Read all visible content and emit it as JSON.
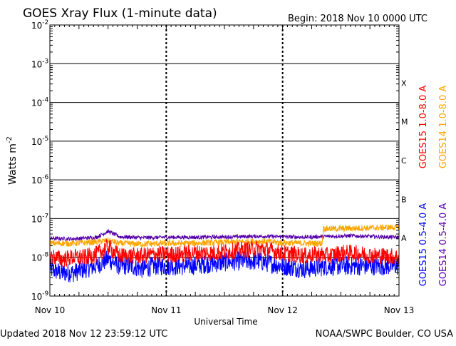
{
  "title": "GOES Xray Flux (1-minute data)",
  "begin": "Begin:  2018 Nov 10 0000 UTC",
  "footer": {
    "updated": "Updated 2018 Nov 12 23:59:12 UTC",
    "credit": "NOAA/SWPC Boulder, CO USA"
  },
  "colors": {
    "goes15_long": "#ff0000",
    "goes14_long": "#ffa500",
    "goes15_short": "#0000ff",
    "goes14_short": "#5500aa"
  },
  "chart_data": {
    "type": "line",
    "title": "GOES Xray Flux (1-minute data)",
    "xlabel": "Universal Time",
    "ylabel": "Watts m⁻²",
    "ylabel_base": "Watts m",
    "ylabel_sup": "-2",
    "yscale": "log",
    "ylim_exp": [
      -9,
      -2
    ],
    "xlim_days": [
      0,
      3
    ],
    "grid": true,
    "x_ticks": [
      {
        "day": 0,
        "label": "Nov 10"
      },
      {
        "day": 1,
        "label": "Nov 11"
      },
      {
        "day": 2,
        "label": "Nov 12"
      },
      {
        "day": 3,
        "label": "Nov 13"
      }
    ],
    "y_ticks": [
      {
        "exp": -9,
        "label": "10",
        "sup": "-9"
      },
      {
        "exp": -8,
        "label": "10",
        "sup": "-8"
      },
      {
        "exp": -7,
        "label": "10",
        "sup": "-7"
      },
      {
        "exp": -6,
        "label": "10",
        "sup": "-6"
      },
      {
        "exp": -5,
        "label": "10",
        "sup": "-5"
      },
      {
        "exp": -4,
        "label": "10",
        "sup": "-4"
      },
      {
        "exp": -3,
        "label": "10",
        "sup": "-3"
      },
      {
        "exp": -2,
        "label": "10",
        "sup": "-2"
      }
    ],
    "flare_classes": [
      {
        "label": "A",
        "exp": -7.5
      },
      {
        "label": "B",
        "exp": -6.5
      },
      {
        "label": "C",
        "exp": -5.5
      },
      {
        "label": "M",
        "exp": -4.5
      },
      {
        "label": "X",
        "exp": -3.5
      }
    ],
    "series": [
      {
        "name": "GOES15 1.0-8.0 A",
        "color": "#ff0000",
        "days": [
          0,
          0.1,
          0.2,
          0.3,
          0.4,
          0.45,
          0.5,
          0.55,
          0.6,
          0.7,
          0.8,
          0.9,
          1.0,
          1.1,
          1.2,
          1.3,
          1.4,
          1.5,
          1.6,
          1.7,
          1.8,
          1.9,
          2.0,
          2.1,
          2.2,
          2.3,
          2.4,
          2.5,
          2.6,
          2.7,
          2.8,
          2.9,
          3.0
        ],
        "values": [
          1.1e-08,
          9e-09,
          1e-08,
          1e-08,
          1.2e-08,
          1.5e-08,
          1.9e-08,
          1.4e-08,
          1.1e-08,
          1.1e-08,
          1.1e-08,
          1.2e-08,
          1.2e-08,
          1.2e-08,
          1.3e-08,
          1.3e-08,
          1.3e-08,
          1.4e-08,
          1.5e-08,
          1.6e-08,
          1.7e-08,
          1.5e-08,
          1.3e-08,
          1.2e-08,
          1.1e-08,
          1.2e-08,
          1.1e-08,
          1.3e-08,
          1.3e-08,
          1.2e-08,
          1.1e-08,
          1.1e-08,
          1e-08
        ]
      },
      {
        "name": "GOES14 1.0-8.0 A",
        "color": "#ffa500",
        "days": [
          0,
          0.2,
          0.4,
          0.5,
          0.6,
          0.8,
          1.0,
          1.2,
          1.4,
          1.6,
          1.8,
          2.0,
          2.2,
          2.34,
          2.35,
          2.5,
          2.7,
          2.9,
          3.0
        ],
        "values": [
          2.3e-08,
          2.3e-08,
          2.5e-08,
          2.7e-08,
          2.3e-08,
          2.2e-08,
          2.3e-08,
          2.3e-08,
          2.4e-08,
          2.5e-08,
          2.6e-08,
          2.4e-08,
          2.3e-08,
          2.3e-08,
          5.5e-08,
          5.5e-08,
          5.7e-08,
          5.9e-08,
          6e-08
        ]
      },
      {
        "name": "GOES15 0.5-4.0 A",
        "color": "#0000ff",
        "days": [
          0,
          0.1,
          0.2,
          0.3,
          0.4,
          0.5,
          0.6,
          0.7,
          0.8,
          0.9,
          1.0,
          1.2,
          1.4,
          1.6,
          1.8,
          2.0,
          2.2,
          2.4,
          2.6,
          2.8,
          3.0
        ],
        "values": [
          5e-09,
          4e-09,
          4e-09,
          5e-09,
          6e-09,
          9e-09,
          6e-09,
          6e-09,
          5e-09,
          6e-09,
          6e-09,
          6e-09,
          7e-09,
          8e-09,
          8e-09,
          6e-09,
          5e-09,
          6e-09,
          6e-09,
          6e-09,
          6e-09
        ]
      },
      {
        "name": "GOES14 0.5-4.0 A",
        "color": "#5500aa",
        "days": [
          0,
          0.2,
          0.4,
          0.5,
          0.6,
          0.8,
          1.0,
          1.3,
          1.6,
          1.8,
          2.0,
          2.2,
          2.4,
          2.6,
          2.8,
          3.0
        ],
        "values": [
          3.1e-08,
          3e-08,
          3.3e-08,
          4.7e-08,
          3.4e-08,
          3.2e-08,
          3.3e-08,
          3.3e-08,
          3.4e-08,
          3.5e-08,
          3.4e-08,
          3.3e-08,
          3.5e-08,
          3.6e-08,
          3.4e-08,
          3.3e-08
        ]
      }
    ]
  }
}
